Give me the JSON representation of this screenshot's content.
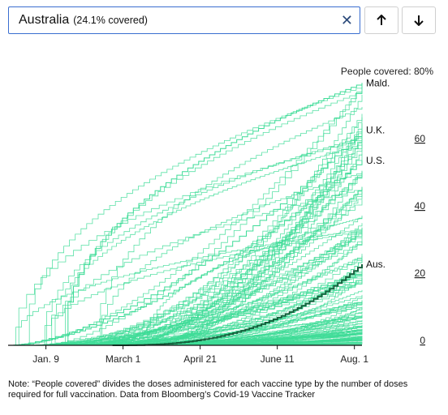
{
  "search": {
    "country": "Australia",
    "coverage_note": "(24.1% covered)",
    "clear_symbol": "✕"
  },
  "buttons": {
    "up_icon": "arrow-up-icon",
    "down_icon": "arrow-down-icon"
  },
  "note": "Note: “People covered” divides the doses administered for each vaccine type by the number of doses required for full vaccination. Data from Bloomberg’s Covid-19 Vaccine Tracker",
  "colors": {
    "lines": "#3ddc97",
    "highlight": "#14623d",
    "axis": "#111111"
  },
  "chart_data": {
    "type": "line",
    "title": "",
    "ylabel": "People covered: 80%",
    "ylim": [
      0,
      80
    ],
    "xlim": [
      "2020-12-15",
      "2021-08-06"
    ],
    "y_ticks": [
      {
        "value": 80,
        "label": "80%"
      },
      {
        "value": 60,
        "label": "60"
      },
      {
        "value": 40,
        "label": "40"
      },
      {
        "value": 20,
        "label": "20"
      },
      {
        "value": 0,
        "label": "0"
      }
    ],
    "x_ticks": [
      {
        "date": "2021-01-09",
        "label": "Jan. 9"
      },
      {
        "date": "2021-03-01",
        "label": "March 1"
      },
      {
        "date": "2021-04-21",
        "label": "April 21"
      },
      {
        "date": "2021-06-11",
        "label": "June 11"
      },
      {
        "date": "2021-08-01",
        "label": "Aug. 1"
      }
    ],
    "labeled_series": [
      {
        "name": "Mald.",
        "start": "2021-01-20",
        "end_value": 78,
        "shape": "early"
      },
      {
        "name": "U.K.",
        "start": "2020-12-15",
        "end_value": 64,
        "shape": "mid"
      },
      {
        "name": "U.S.",
        "start": "2020-12-15",
        "end_value": 55,
        "shape": "mid"
      },
      {
        "name": "Aus.",
        "start": "2021-02-22",
        "end_value": 24.1,
        "shape": "late",
        "highlight": true
      }
    ],
    "background_series_count": 140
  }
}
